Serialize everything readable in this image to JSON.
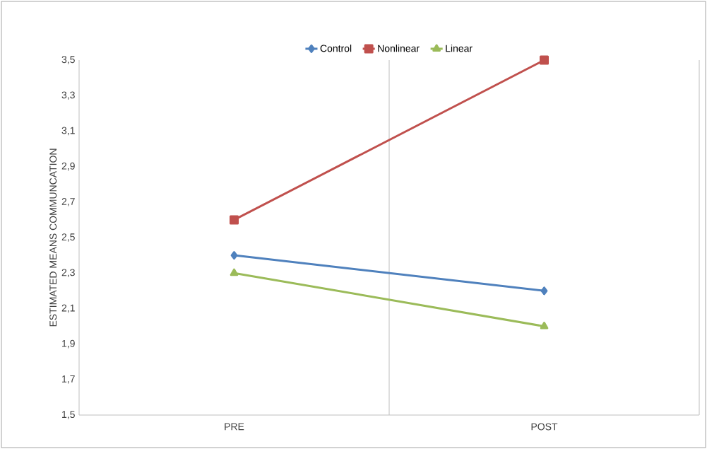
{
  "chart_data": {
    "type": "line",
    "ylabel": "ESTIMATED MEANS COMMUNCATION",
    "categories": [
      "PRE",
      "POST"
    ],
    "series": [
      {
        "name": "Control",
        "color": "#4f81bd",
        "marker": "diamond",
        "values": [
          2.4,
          2.2
        ]
      },
      {
        "name": "Nonlinear",
        "color": "#c0504d",
        "marker": "square",
        "values": [
          2.6,
          3.5
        ]
      },
      {
        "name": "Linear",
        "color": "#9bbb59",
        "marker": "triangle",
        "values": [
          2.3,
          2.0
        ]
      }
    ],
    "ylim": [
      1.5,
      3.5
    ],
    "yticks": [
      {
        "value": 1.5,
        "label": "1,5"
      },
      {
        "value": 1.7,
        "label": "1,7"
      },
      {
        "value": 1.9,
        "label": "1,9"
      },
      {
        "value": 2.1,
        "label": "2,1"
      },
      {
        "value": 2.3,
        "label": "2,3"
      },
      {
        "value": 2.5,
        "label": "2,5"
      },
      {
        "value": 2.7,
        "label": "2,7"
      },
      {
        "value": 2.9,
        "label": "2,9"
      },
      {
        "value": 3.1,
        "label": "3,1"
      },
      {
        "value": 3.3,
        "label": "3,3"
      },
      {
        "value": 3.5,
        "label": "3,5"
      }
    ],
    "grid": "x",
    "legend": "top",
    "line_style": "solid"
  }
}
